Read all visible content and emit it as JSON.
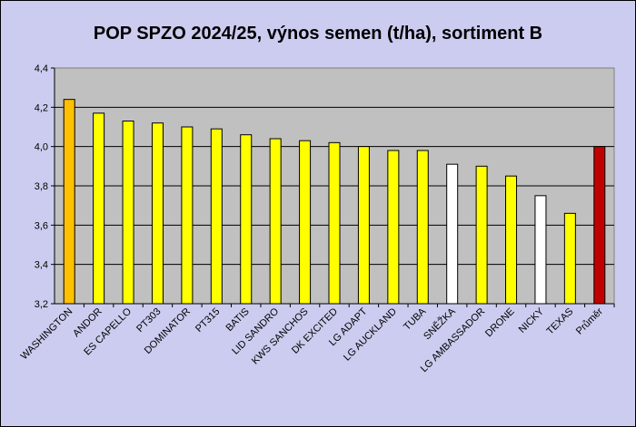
{
  "chart_data": {
    "type": "bar",
    "title": "POP SPZO 2024/25, výnos semen (t/ha), sortiment B",
    "xlabel": "",
    "ylabel": "",
    "ylim": [
      3.2,
      4.4
    ],
    "yticks": [
      "3,2",
      "3,4",
      "3,6",
      "3,8",
      "4,0",
      "4,2",
      "4,4"
    ],
    "grid": true,
    "legend": "none",
    "categories": [
      "WASHINGTON",
      "ANDOR",
      "ES CAPELLO",
      "PT303",
      "DOMINATOR",
      "PT315",
      "BATIS",
      "LID SANDRO",
      "KWS SANCHOS",
      "DK EXCITED",
      "LG ADAPT",
      "LG AUCKLAND",
      "TUBA",
      "SNĚŽKA",
      "LG AMBASSADOR",
      "DRONE",
      "NICKY",
      "TEXAS",
      "Průměr"
    ],
    "values": [
      4.24,
      4.17,
      4.13,
      4.12,
      4.1,
      4.09,
      4.06,
      4.04,
      4.03,
      4.02,
      4.0,
      3.98,
      3.98,
      3.91,
      3.9,
      3.85,
      3.75,
      3.66,
      4.0
    ],
    "bar_colors": [
      "#ffc000",
      "#ffff00",
      "#ffff00",
      "#ffff00",
      "#ffff00",
      "#ffff00",
      "#ffff00",
      "#ffff00",
      "#ffff00",
      "#ffff00",
      "#ffff00",
      "#ffff00",
      "#ffff00",
      "#ffffff",
      "#ffff00",
      "#ffff00",
      "#ffffff",
      "#ffff00",
      "#c00000"
    ],
    "plot_background": "#c0c0c0",
    "page_background": "#ccccf0"
  }
}
